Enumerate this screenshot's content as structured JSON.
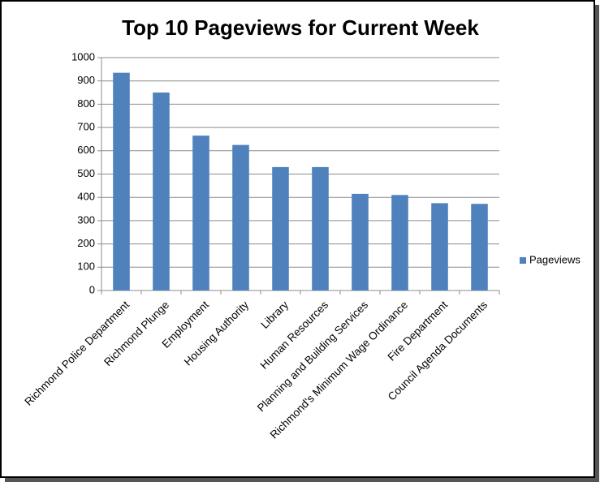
{
  "chart_data": {
    "type": "bar",
    "title": "Top 10 Pageviews for Current Week",
    "categories": [
      "Richmond Police Department",
      "Richmond Plunge",
      "Employment",
      "Housing Authority",
      "Library",
      "Human Resources",
      "Planning and Building Services",
      "Richmond's Minimum Wage Ordinance",
      "Fire Department",
      "Council Agenda Documents"
    ],
    "series": [
      {
        "name": "Pageviews",
        "color": "#4f81bd",
        "values": [
          935,
          850,
          665,
          625,
          530,
          530,
          415,
          410,
          375,
          372
        ]
      }
    ],
    "ylim": [
      0,
      1000
    ],
    "yticks": [
      0,
      100,
      200,
      300,
      400,
      500,
      600,
      700,
      800,
      900,
      1000
    ],
    "grid": true,
    "legend": "right"
  }
}
